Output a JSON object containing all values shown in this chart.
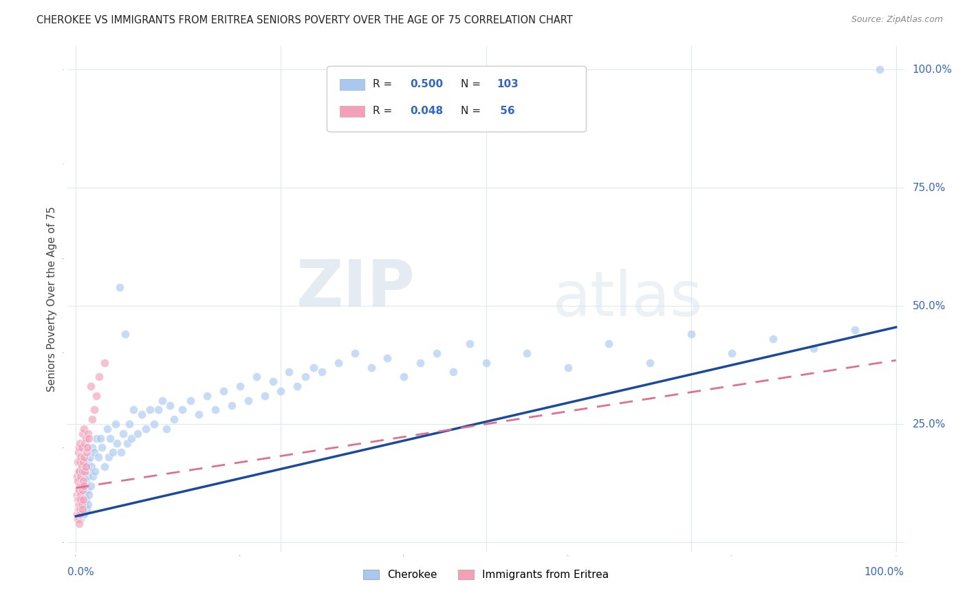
{
  "title": "CHEROKEE VS IMMIGRANTS FROM ERITREA SENIORS POVERTY OVER THE AGE OF 75 CORRELATION CHART",
  "source": "Source: ZipAtlas.com",
  "ylabel": "Seniors Poverty Over the Age of 75",
  "background_color": "#ffffff",
  "grid_color": "#dde8f0",
  "watermark_zip": "ZIP",
  "watermark_atlas": "atlas",
  "cherokee_color": "#a8c8f0",
  "eritrea_color": "#f4a0b8",
  "cherokee_line_color": "#1a4a9e",
  "eritrea_line_color": "#e07090",
  "axis_label_color": "#3366cc",
  "title_color": "#222222",
  "source_color": "#888888",
  "ylabel_color": "#444444",
  "legend_R1": "0.500",
  "legend_N1": "103",
  "legend_R2": "0.048",
  "legend_N2": " 56",
  "cherokee_x": [
    0.005,
    0.005,
    0.005,
    0.006,
    0.006,
    0.007,
    0.007,
    0.007,
    0.008,
    0.008,
    0.008,
    0.009,
    0.009,
    0.009,
    0.01,
    0.01,
    0.01,
    0.011,
    0.011,
    0.012,
    0.012,
    0.013,
    0.013,
    0.014,
    0.014,
    0.015,
    0.015,
    0.016,
    0.016,
    0.017,
    0.018,
    0.019,
    0.02,
    0.021,
    0.022,
    0.023,
    0.025,
    0.027,
    0.03,
    0.032,
    0.035,
    0.038,
    0.04,
    0.042,
    0.045,
    0.048,
    0.05,
    0.053,
    0.055,
    0.058,
    0.06,
    0.063,
    0.065,
    0.068,
    0.07,
    0.075,
    0.08,
    0.085,
    0.09,
    0.095,
    0.1,
    0.105,
    0.11,
    0.115,
    0.12,
    0.13,
    0.14,
    0.15,
    0.16,
    0.17,
    0.18,
    0.19,
    0.2,
    0.21,
    0.22,
    0.23,
    0.24,
    0.25,
    0.26,
    0.27,
    0.28,
    0.29,
    0.3,
    0.32,
    0.34,
    0.36,
    0.38,
    0.4,
    0.42,
    0.44,
    0.46,
    0.48,
    0.5,
    0.55,
    0.6,
    0.65,
    0.7,
    0.75,
    0.8,
    0.85,
    0.9,
    0.95,
    0.98
  ],
  "cherokee_y": [
    0.12,
    0.08,
    0.15,
    0.1,
    0.05,
    0.13,
    0.07,
    0.16,
    0.09,
    0.14,
    0.06,
    0.11,
    0.17,
    0.08,
    0.14,
    0.1,
    0.06,
    0.15,
    0.08,
    0.13,
    0.09,
    0.16,
    0.07,
    0.14,
    0.11,
    0.17,
    0.08,
    0.15,
    0.1,
    0.18,
    0.12,
    0.16,
    0.2,
    0.14,
    0.19,
    0.15,
    0.22,
    0.18,
    0.22,
    0.2,
    0.16,
    0.24,
    0.18,
    0.22,
    0.19,
    0.25,
    0.21,
    0.54,
    0.19,
    0.23,
    0.44,
    0.21,
    0.25,
    0.22,
    0.28,
    0.23,
    0.27,
    0.24,
    0.28,
    0.25,
    0.28,
    0.3,
    0.24,
    0.29,
    0.26,
    0.28,
    0.3,
    0.27,
    0.31,
    0.28,
    0.32,
    0.29,
    0.33,
    0.3,
    0.35,
    0.31,
    0.34,
    0.32,
    0.36,
    0.33,
    0.35,
    0.37,
    0.36,
    0.38,
    0.4,
    0.37,
    0.39,
    0.35,
    0.38,
    0.4,
    0.36,
    0.42,
    0.38,
    0.4,
    0.37,
    0.42,
    0.38,
    0.44,
    0.4,
    0.43,
    0.41,
    0.45,
    1.0
  ],
  "eritrea_x": [
    0.001,
    0.001,
    0.001,
    0.002,
    0.002,
    0.002,
    0.002,
    0.003,
    0.003,
    0.003,
    0.003,
    0.003,
    0.004,
    0.004,
    0.004,
    0.004,
    0.004,
    0.004,
    0.005,
    0.005,
    0.005,
    0.005,
    0.005,
    0.006,
    0.006,
    0.006,
    0.006,
    0.006,
    0.007,
    0.007,
    0.007,
    0.007,
    0.008,
    0.008,
    0.008,
    0.008,
    0.009,
    0.009,
    0.009,
    0.01,
    0.01,
    0.01,
    0.011,
    0.011,
    0.012,
    0.012,
    0.013,
    0.014,
    0.015,
    0.016,
    0.018,
    0.02,
    0.022,
    0.025,
    0.028,
    0.035
  ],
  "eritrea_y": [
    0.06,
    0.1,
    0.14,
    0.05,
    0.09,
    0.13,
    0.17,
    0.07,
    0.11,
    0.15,
    0.19,
    0.08,
    0.06,
    0.11,
    0.15,
    0.2,
    0.09,
    0.04,
    0.08,
    0.12,
    0.17,
    0.21,
    0.07,
    0.1,
    0.14,
    0.18,
    0.06,
    0.09,
    0.12,
    0.16,
    0.2,
    0.08,
    0.11,
    0.15,
    0.23,
    0.07,
    0.13,
    0.17,
    0.09,
    0.12,
    0.18,
    0.24,
    0.15,
    0.21,
    0.16,
    0.22,
    0.19,
    0.2,
    0.23,
    0.22,
    0.33,
    0.26,
    0.28,
    0.31,
    0.35,
    0.38
  ],
  "cherokee_line_x": [
    0.0,
    1.0
  ],
  "cherokee_line_y": [
    0.055,
    0.455
  ],
  "eritrea_line_x": [
    0.0,
    1.0
  ],
  "eritrea_line_y": [
    0.115,
    0.385
  ],
  "xlim": [
    -0.01,
    1.01
  ],
  "ylim": [
    -0.02,
    1.05
  ],
  "xtick_positions": [
    0.0,
    0.25,
    0.5,
    0.75,
    1.0
  ],
  "ytick_positions": [
    0.0,
    0.25,
    0.5,
    0.75,
    1.0
  ],
  "marker_size": 80,
  "marker_alpha": 0.65,
  "marker_lw": 0.8
}
